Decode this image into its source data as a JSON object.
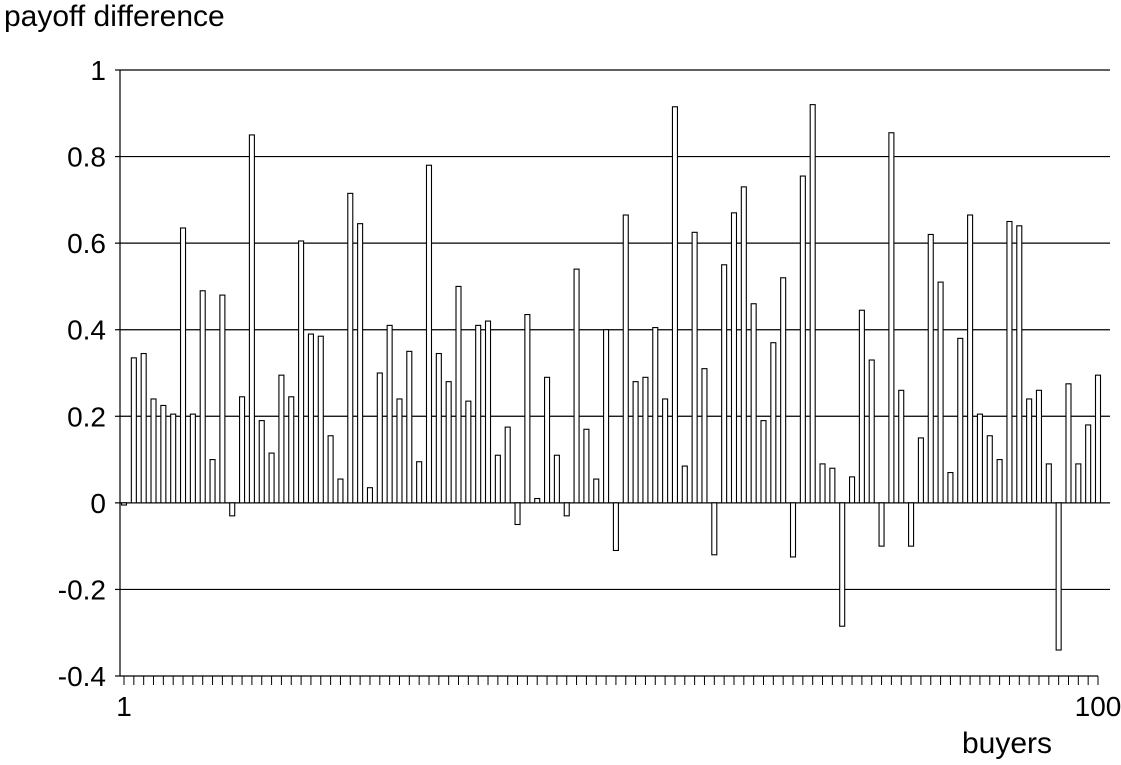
{
  "chart_data": {
    "type": "bar",
    "ylabel": "payoff difference",
    "xlabel": "buyers",
    "ylim": [
      -0.4,
      1
    ],
    "yticks": [
      1,
      0.8,
      0.6,
      0.4,
      0.2,
      0,
      -0.2,
      -0.4
    ],
    "ytick_labels": [
      "1",
      "0.8",
      "0.6",
      "0.4",
      "0.2",
      "0",
      "-0.2",
      "-0.4"
    ],
    "xlim": [
      1,
      100
    ],
    "xtick_labels": [
      "1",
      "100"
    ],
    "grid": "horizontal",
    "categories": [
      1,
      2,
      3,
      4,
      5,
      6,
      7,
      8,
      9,
      10,
      11,
      12,
      13,
      14,
      15,
      16,
      17,
      18,
      19,
      20,
      21,
      22,
      23,
      24,
      25,
      26,
      27,
      28,
      29,
      30,
      31,
      32,
      33,
      34,
      35,
      36,
      37,
      38,
      39,
      40,
      41,
      42,
      43,
      44,
      45,
      46,
      47,
      48,
      49,
      50,
      51,
      52,
      53,
      54,
      55,
      56,
      57,
      58,
      59,
      60,
      61,
      62,
      63,
      64,
      65,
      66,
      67,
      68,
      69,
      70,
      71,
      72,
      73,
      74,
      75,
      76,
      77,
      78,
      79,
      80,
      81,
      82,
      83,
      84,
      85,
      86,
      87,
      88,
      89,
      90,
      91,
      92,
      93,
      94,
      95,
      96,
      97,
      98,
      99,
      100
    ],
    "values": [
      -0.005,
      0.335,
      0.345,
      0.24,
      0.225,
      0.205,
      0.635,
      0.205,
      0.49,
      0.1,
      0.48,
      -0.03,
      0.245,
      0.85,
      0.19,
      0.115,
      0.295,
      0.245,
      0.605,
      0.39,
      0.385,
      0.155,
      0.055,
      0.715,
      0.645,
      0.035,
      0.3,
      0.41,
      0.24,
      0.35,
      0.095,
      0.78,
      0.345,
      0.28,
      0.5,
      0.235,
      0.41,
      0.42,
      0.11,
      0.175,
      -0.05,
      0.435,
      0.01,
      0.29,
      0.11,
      -0.03,
      0.54,
      0.17,
      0.055,
      0.4,
      -0.11,
      0.665,
      0.28,
      0.29,
      0.405,
      0.24,
      0.915,
      0.085,
      0.625,
      0.31,
      -0.12,
      0.55,
      0.67,
      0.73,
      0.46,
      0.19,
      0.37,
      0.52,
      -0.125,
      0.755,
      0.92,
      0.09,
      0.08,
      -0.285,
      0.06,
      0.445,
      0.33,
      -0.1,
      0.855,
      0.26,
      -0.1,
      0.15,
      0.62,
      0.51,
      0.07,
      0.38,
      0.665,
      0.205,
      0.155,
      0.1,
      0.65,
      0.64,
      0.24,
      0.26,
      0.09,
      -0.34,
      0.275,
      0.09,
      0.18,
      0.295
    ]
  }
}
